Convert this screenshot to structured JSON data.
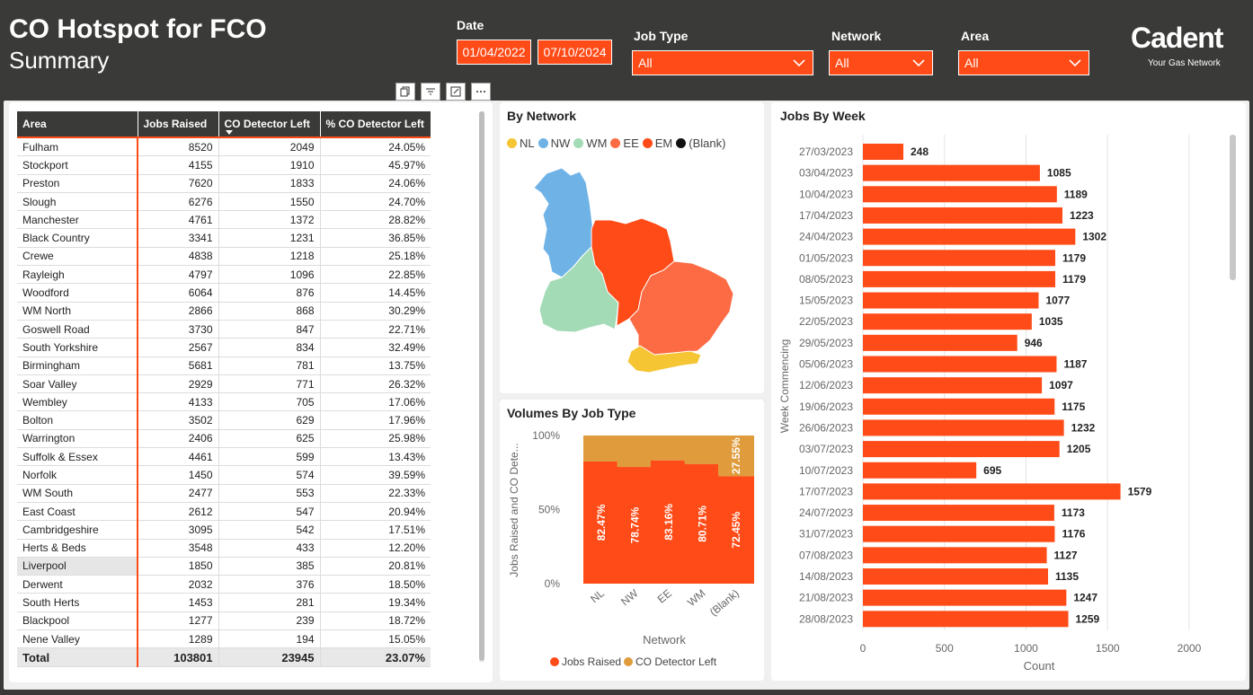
{
  "header": {
    "title": "CO Hotspot for FCO",
    "subtitle": "Summary",
    "date_label": "Date",
    "date_from": "01/04/2022",
    "date_to": "07/10/2024",
    "job_type_label": "Job Type",
    "job_type_value": "All",
    "network_label": "Network",
    "network_value": "All",
    "area_label": "Area",
    "area_value": "All",
    "brand": "Cadent",
    "brand_tagline": "Your Gas Network"
  },
  "colors": {
    "accent": "#ff4b17",
    "header_bg": "#3a3a38",
    "amber": "#e09c3c"
  },
  "table": {
    "columns": [
      "Area",
      "Jobs Raised",
      "CO Detector Left",
      "% CO Detector Left"
    ],
    "rows": [
      [
        "Fulham",
        "8520",
        "2049",
        "24.05%"
      ],
      [
        "Stockport",
        "4155",
        "1910",
        "45.97%"
      ],
      [
        "Preston",
        "7620",
        "1833",
        "24.06%"
      ],
      [
        "Slough",
        "6276",
        "1550",
        "24.70%"
      ],
      [
        "Manchester",
        "4761",
        "1372",
        "28.82%"
      ],
      [
        "Black Country",
        "3341",
        "1231",
        "36.85%"
      ],
      [
        "Crewe",
        "4838",
        "1218",
        "25.18%"
      ],
      [
        "Rayleigh",
        "4797",
        "1096",
        "22.85%"
      ],
      [
        "Woodford",
        "6064",
        "876",
        "14.45%"
      ],
      [
        "WM North",
        "2866",
        "868",
        "30.29%"
      ],
      [
        "Goswell Road",
        "3730",
        "847",
        "22.71%"
      ],
      [
        "South Yorkshire",
        "2567",
        "834",
        "32.49%"
      ],
      [
        "Birmingham",
        "5681",
        "781",
        "13.75%"
      ],
      [
        "Soar Valley",
        "2929",
        "771",
        "26.32%"
      ],
      [
        "Wembley",
        "4133",
        "705",
        "17.06%"
      ],
      [
        "Bolton",
        "3502",
        "629",
        "17.96%"
      ],
      [
        "Warrington",
        "2406",
        "625",
        "25.98%"
      ],
      [
        "Suffolk & Essex",
        "4461",
        "599",
        "13.43%"
      ],
      [
        "Norfolk",
        "1450",
        "574",
        "39.59%"
      ],
      [
        "WM South",
        "2477",
        "553",
        "22.33%"
      ],
      [
        "East Coast",
        "2612",
        "547",
        "20.94%"
      ],
      [
        "Cambridgeshire",
        "3095",
        "542",
        "17.51%"
      ],
      [
        "Herts & Beds",
        "3548",
        "433",
        "12.20%"
      ],
      [
        "Liverpool",
        "1850",
        "385",
        "20.81%"
      ],
      [
        "Derwent",
        "2032",
        "376",
        "18.50%"
      ],
      [
        "South Herts",
        "1453",
        "281",
        "19.34%"
      ],
      [
        "Blackpool",
        "1277",
        "239",
        "18.72%"
      ],
      [
        "Nene Valley",
        "1289",
        "194",
        "15.05%"
      ]
    ],
    "total": [
      "Total",
      "103801",
      "23945",
      "23.07%"
    ]
  },
  "map_panel": {
    "title": "By Network",
    "legend": [
      {
        "label": "NL",
        "color": "#f5c533"
      },
      {
        "label": "NW",
        "color": "#6fb3e6"
      },
      {
        "label": "WM",
        "color": "#a3dbb6"
      },
      {
        "label": "EE",
        "color": "#fc6b44"
      },
      {
        "label": "EM",
        "color": "#ff4b17"
      },
      {
        "label": "(Blank)",
        "color": "#111111"
      }
    ]
  },
  "volumes_panel": {
    "title": "Volumes By Job Type",
    "legend": [
      {
        "label": "Jobs Raised",
        "color": "#ff4b17"
      },
      {
        "label": "CO Detector Left",
        "color": "#e09c3c"
      }
    ],
    "chart_data": {
      "type": "bar",
      "stacked": "100%",
      "categories": [
        "NL",
        "NW",
        "EE",
        "WM",
        "(Blank)"
      ],
      "series": [
        {
          "name": "Jobs Raised",
          "values": [
            82.47,
            78.74,
            83.16,
            80.71,
            72.45
          ]
        },
        {
          "name": "CO Detector Left",
          "values": [
            17.53,
            21.26,
            16.84,
            19.29,
            27.55
          ]
        }
      ],
      "labels_shown": {
        "0": [
          "82.47%",
          "78.74%",
          "83.16%",
          "80.71%",
          "72.45%"
        ],
        "4": "27.55%"
      },
      "xlabel": "Network",
      "ylabel": "Jobs Raised and CO Dete...",
      "yticks": [
        "0%",
        "50%",
        "100%"
      ],
      "ylim": [
        0,
        100
      ]
    }
  },
  "weekly_panel": {
    "title": "Jobs By Week",
    "chart_data": {
      "type": "bar",
      "orientation": "horizontal",
      "categories": [
        "27/03/2023",
        "03/04/2023",
        "10/04/2023",
        "17/04/2023",
        "24/04/2023",
        "01/05/2023",
        "08/05/2023",
        "15/05/2023",
        "22/05/2023",
        "29/05/2023",
        "05/06/2023",
        "12/06/2023",
        "19/06/2023",
        "26/06/2023",
        "03/07/2023",
        "10/07/2023",
        "17/07/2023",
        "24/07/2023",
        "31/07/2023",
        "07/08/2023",
        "14/08/2023",
        "21/08/2023",
        "28/08/2023"
      ],
      "values": [
        248,
        1085,
        1189,
        1223,
        1302,
        1179,
        1179,
        1077,
        1035,
        946,
        1187,
        1097,
        1175,
        1232,
        1205,
        695,
        1579,
        1173,
        1176,
        1127,
        1135,
        1247,
        1259
      ],
      "xlabel": "Count",
      "ylabel": "Week Commencing",
      "xticks": [
        0,
        500,
        1000,
        1500,
        2000
      ],
      "xlim": [
        0,
        2000
      ]
    }
  }
}
